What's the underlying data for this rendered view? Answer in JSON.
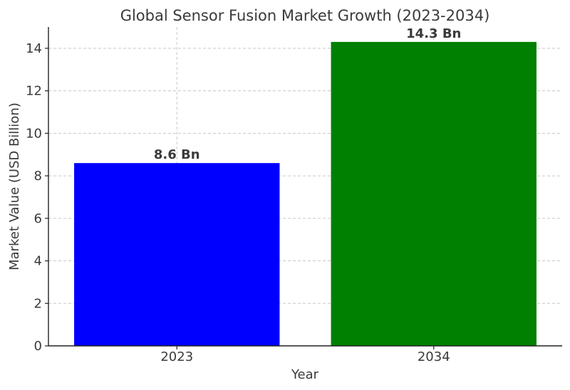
{
  "chart_data": {
    "type": "bar",
    "title": "Global Sensor Fusion Market Growth (2023-2034)",
    "xlabel": "Year",
    "ylabel": "Market Value (USD Billion)",
    "categories": [
      "2023",
      "2034"
    ],
    "values": [
      8.6,
      14.3
    ],
    "data_labels": [
      "8.6 Bn",
      "14.3 Bn"
    ],
    "colors": [
      "#0000ff",
      "#008000"
    ],
    "ylim": [
      0,
      15
    ],
    "yticks": [
      0,
      2,
      4,
      6,
      8,
      10,
      12,
      14
    ],
    "grid": true
  }
}
